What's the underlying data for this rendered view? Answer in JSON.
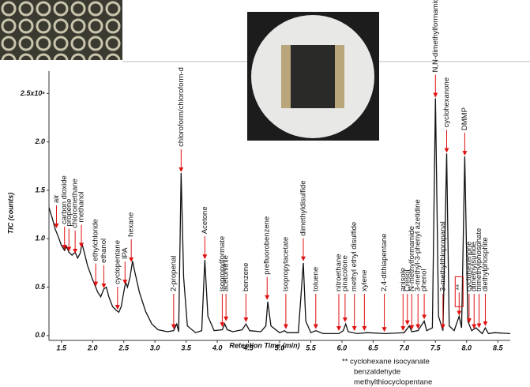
{
  "chart_data": {
    "type": "line",
    "xlabel": "Retention Time (min)",
    "ylabel": "TIC (counts)",
    "xlim": [
      1.3,
      8.7
    ],
    "ylim": [
      -0.05,
      2.65
    ],
    "xticks": [
      1.5,
      {
        "value": 2,
        "label": "2.0"
      },
      2.5,
      {
        "value": 3,
        "label": "3.0"
      },
      3.5,
      {
        "value": 4,
        "label": "4.0"
      },
      4.5,
      {
        "value": 5,
        "label": "5.0"
      },
      5.5,
      {
        "value": 6,
        "label": "6.0"
      },
      6.5,
      {
        "value": 7,
        "label": "7.0"
      },
      7.5,
      {
        "value": 8,
        "label": "8.0"
      },
      8.5
    ],
    "yticks": [
      {
        "value": 0,
        "label": "0.0"
      },
      0.5,
      {
        "value": 1,
        "label": "1.0"
      },
      1.5,
      {
        "value": 2,
        "label": "2.0"
      },
      {
        "value": 2.5,
        "label": "2.5x10⁶"
      }
    ],
    "color": "#111111",
    "annotation_color": "#e01010",
    "x": [
      1.3,
      1.35,
      1.4,
      1.45,
      1.5,
      1.55,
      1.58,
      1.62,
      1.67,
      1.72,
      1.76,
      1.8,
      1.83,
      1.87,
      1.92,
      2.0,
      2.05,
      2.08,
      2.13,
      2.18,
      2.22,
      2.26,
      2.32,
      2.38,
      2.42,
      2.46,
      2.5,
      2.53,
      2.56,
      2.6,
      2.64,
      2.68,
      2.75,
      2.85,
      2.95,
      3.05,
      3.2,
      3.3,
      3.35,
      3.38,
      3.42,
      3.46,
      3.52,
      3.65,
      3.75,
      3.8,
      3.85,
      3.95,
      4.08,
      4.12,
      4.16,
      4.25,
      4.4,
      4.46,
      4.52,
      4.7,
      4.78,
      4.81,
      4.86,
      5.0,
      5.08,
      5.12,
      5.3,
      5.38,
      5.42,
      5.5,
      5.58,
      5.7,
      5.95,
      6.02,
      6.06,
      6.1,
      6.25,
      6.4,
      6.7,
      7.0,
      7.08,
      7.12,
      7.22,
      7.32,
      7.36,
      7.45,
      7.5,
      7.55,
      7.62,
      7.68,
      7.72,
      7.8,
      7.88,
      7.92,
      7.97,
      8.02,
      8.08,
      8.15,
      8.25,
      8.3,
      8.35,
      8.45,
      8.7
    ],
    "values": [
      1.32,
      1.22,
      1.1,
      1.02,
      0.93,
      0.88,
      0.92,
      0.86,
      0.83,
      0.86,
      0.8,
      0.85,
      0.95,
      0.85,
      0.72,
      0.58,
      0.5,
      0.45,
      0.4,
      0.48,
      0.5,
      0.4,
      0.3,
      0.26,
      0.24,
      0.3,
      0.45,
      0.55,
      0.5,
      0.6,
      0.77,
      0.65,
      0.45,
      0.25,
      0.12,
      0.06,
      0.04,
      0.05,
      0.12,
      0.04,
      1.68,
      0.6,
      0.1,
      0.03,
      0.05,
      0.78,
      0.2,
      0.05,
      0.06,
      0.12,
      0.06,
      0.04,
      0.06,
      0.12,
      0.05,
      0.04,
      0.1,
      0.35,
      0.1,
      0.03,
      0.05,
      0.03,
      0.03,
      0.75,
      0.15,
      0.03,
      0.05,
      0.02,
      0.02,
      0.05,
      0.12,
      0.04,
      0.02,
      0.03,
      0.02,
      0.03,
      0.1,
      0.04,
      0.05,
      0.15,
      0.05,
      0.08,
      2.45,
      0.2,
      0.05,
      1.88,
      0.1,
      0.05,
      0.2,
      0.08,
      1.85,
      0.15,
      0.05,
      0.08,
      0.02,
      0.08,
      0.02,
      0.03,
      0.02
    ],
    "annotations": [
      {
        "label": "air",
        "x": 1.42,
        "y": 1.1
      },
      {
        "label": "carbon dioxide",
        "x": 1.55,
        "y": 0.88
      },
      {
        "label": "propene",
        "x": 1.62,
        "y": 0.86
      },
      {
        "label": "chloromethane",
        "x": 1.72,
        "y": 0.84
      },
      {
        "label": "methanol",
        "x": 1.82,
        "y": 0.9
      },
      {
        "label": "ethylchloride",
        "x": 2.05,
        "y": 0.5
      },
      {
        "label": "ethanol",
        "x": 2.18,
        "y": 0.48
      },
      {
        "label": "cyclopentane",
        "x": 2.4,
        "y": 0.26
      },
      {
        "label": "IPA",
        "x": 2.52,
        "y": 0.52
      },
      {
        "label": "hexane",
        "x": 2.62,
        "y": 0.75
      },
      {
        "label": "2-propenal",
        "x": 3.3,
        "y": 0.06
      },
      {
        "label": "chloroform/chloroform-d",
        "x": 3.42,
        "y": 1.68
      },
      {
        "label": "Acetone",
        "x": 3.8,
        "y": 0.78
      },
      {
        "label": "isopropylformate",
        "x": 4.08,
        "y": 0.08
      },
      {
        "label": "acetonitrile",
        "x": 4.14,
        "y": 0.14
      },
      {
        "label": "benzene",
        "x": 4.46,
        "y": 0.13
      },
      {
        "label": "prefluorobenzene",
        "x": 4.8,
        "y": 0.36
      },
      {
        "label": "isopropylacetate",
        "x": 5.1,
        "y": 0.06
      },
      {
        "label": "dimethyldisulfide",
        "x": 5.38,
        "y": 0.76
      },
      {
        "label": "toluene",
        "x": 5.58,
        "y": 0.06
      },
      {
        "label": "nitroethane",
        "x": 5.95,
        "y": 0.04
      },
      {
        "label": "pinacolone",
        "x": 6.05,
        "y": 0.13
      },
      {
        "label": "methyl ethyl disulfide",
        "x": 6.2,
        "y": 0.04
      },
      {
        "label": "xylene",
        "x": 6.36,
        "y": 0.04
      },
      {
        "label": "2,4-dithiapentane",
        "x": 6.68,
        "y": 0.03
      },
      {
        "label": "anisole",
        "x": 6.98,
        "y": 0.04
      },
      {
        "label": "Cresol",
        "x": 7.05,
        "y": 0.1
      },
      {
        "label": "N-methylformamide",
        "x": 7.12,
        "y": 0.05
      },
      {
        "label": "3-methyl-3-phenyl azetidine",
        "x": 7.22,
        "y": 0.06
      },
      {
        "label": "phenol",
        "x": 7.32,
        "y": 0.16
      },
      {
        "label": "N,N-dimethylformamide",
        "x": 7.5,
        "y": 2.45
      },
      {
        "label": "3-methylthiopropanal",
        "x": 7.62,
        "y": 0.06
      },
      {
        "label": "cyclohexanone",
        "x": 7.68,
        "y": 1.88
      },
      {
        "label": "**",
        "x": 7.88,
        "y": 0.2
      },
      {
        "label": "DMMP",
        "x": 7.97,
        "y": 1.85
      },
      {
        "label": "cyclohexenone",
        "x": 8.04,
        "y": 0.12
      },
      {
        "label": "dimethylsulfide",
        "x": 8.12,
        "y": 0.06
      },
      {
        "label": "trimethylphosphate",
        "x": 8.2,
        "y": 0.07
      },
      {
        "label": "diethylphosphite",
        "x": 8.3,
        "y": 0.09
      }
    ],
    "notes": [
      "** cyclohexane isocyanate",
      "benzaldehyde",
      "methylthiocyclopentane"
    ]
  }
}
